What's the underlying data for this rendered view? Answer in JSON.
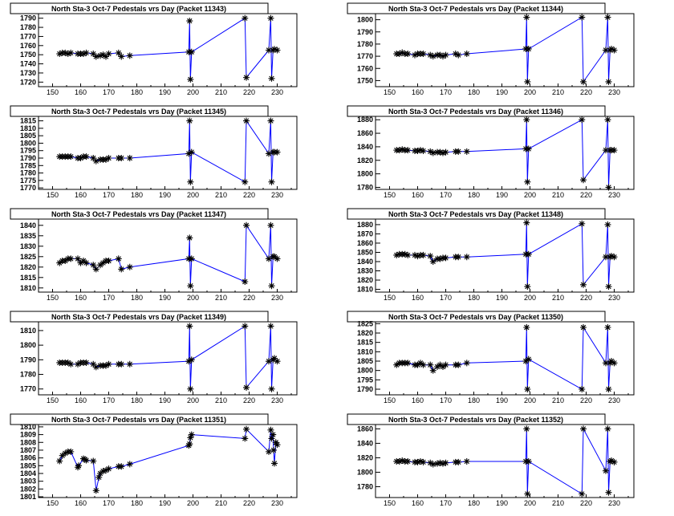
{
  "chart_data": [
    {
      "type": "line",
      "title": "North Sta-3 Oct-7 Pedestals vrs Day (Packet 11343)",
      "xlim": [
        145,
        237
      ],
      "xticks": [
        150,
        160,
        170,
        180,
        190,
        200,
        210,
        220,
        230
      ],
      "ylim": [
        1715,
        1795
      ],
      "yticks": [
        1720,
        1730,
        1740,
        1750,
        1760,
        1770,
        1780,
        1790
      ],
      "x": [
        152.5,
        153.5,
        154.5,
        155.5,
        156.5,
        159,
        160,
        161,
        162,
        164.5,
        165.5,
        167,
        168,
        169,
        170,
        173.5,
        174.5,
        177.5,
        198.5,
        198.8,
        199.1,
        199.5,
        218.5,
        219,
        227,
        227.7,
        228,
        228.5,
        229,
        230
      ],
      "y": [
        1751,
        1752,
        1752,
        1751,
        1752,
        1751,
        1751,
        1751,
        1752,
        1751,
        1748,
        1749,
        1750,
        1748,
        1751,
        1752,
        1748,
        1749,
        1753,
        1787,
        1723,
        1753,
        1790,
        1725,
        1755,
        1790,
        1724,
        1755,
        1756,
        1755
      ]
    },
    {
      "type": "line",
      "title": "North Sta-3 Oct-7 Pedestals vrs Day (Packet 11344)",
      "xlim": [
        145,
        237
      ],
      "xticks": [
        150,
        160,
        170,
        180,
        190,
        200,
        210,
        220,
        230
      ],
      "ylim": [
        1745,
        1805
      ],
      "yticks": [
        1750,
        1760,
        1770,
        1780,
        1790,
        1800
      ],
      "x": [
        152.5,
        153.5,
        154.5,
        155.5,
        156.5,
        159,
        160,
        161,
        162,
        164.5,
        165.5,
        167,
        168,
        169,
        170,
        173.5,
        174.5,
        177.5,
        198.5,
        198.8,
        199.1,
        199.5,
        218.5,
        219,
        227,
        227.7,
        228,
        228.5,
        229,
        230
      ],
      "y": [
        1772,
        1772,
        1773,
        1772,
        1772,
        1771,
        1772,
        1772,
        1772,
        1771,
        1770,
        1771,
        1771,
        1770,
        1771,
        1772,
        1771,
        1772,
        1776,
        1802,
        1749,
        1776,
        1802,
        1749,
        1775,
        1802,
        1749,
        1775,
        1776,
        1775
      ]
    },
    {
      "type": "line",
      "title": "North Sta-3 Oct-7 Pedestals vrs Day (Packet 11345)",
      "xlim": [
        145,
        237
      ],
      "xticks": [
        150,
        160,
        170,
        180,
        190,
        200,
        210,
        220,
        230
      ],
      "ylim": [
        1769,
        1818
      ],
      "yticks": [
        1770,
        1775,
        1780,
        1785,
        1790,
        1795,
        1800,
        1805,
        1810,
        1815
      ],
      "x": [
        152.5,
        153.5,
        154.5,
        155.5,
        156.5,
        159,
        160,
        161,
        162,
        164.5,
        165.5,
        167,
        168,
        169,
        170,
        173.5,
        174.5,
        177.5,
        198.5,
        198.8,
        199.1,
        199.5,
        218.5,
        219,
        227,
        227.7,
        228,
        228.5,
        229,
        230
      ],
      "y": [
        1791,
        1791,
        1791,
        1791,
        1791,
        1790,
        1790,
        1791,
        1791,
        1790,
        1788,
        1789,
        1789,
        1789,
        1790,
        1790,
        1790,
        1790,
        1793,
        1815,
        1774,
        1794,
        1774,
        1815,
        1793,
        1815,
        1774,
        1794,
        1794,
        1794
      ]
    },
    {
      "type": "line",
      "title": "North Sta-3 Oct-7 Pedestals vrs Day (Packet 11346)",
      "xlim": [
        145,
        237
      ],
      "xticks": [
        150,
        160,
        170,
        180,
        190,
        200,
        210,
        220,
        230
      ],
      "ylim": [
        1777,
        1885
      ],
      "yticks": [
        1780,
        1800,
        1820,
        1840,
        1860,
        1880
      ],
      "x": [
        152.5,
        153.5,
        154.5,
        155.5,
        156.5,
        159,
        160,
        161,
        162,
        164.5,
        165.5,
        167,
        168,
        169,
        170,
        173.5,
        174.5,
        177.5,
        198.5,
        198.8,
        199.1,
        199.5,
        218.5,
        219,
        227,
        227.7,
        228,
        228.5,
        229,
        230
      ],
      "y": [
        1835,
        1835,
        1836,
        1835,
        1835,
        1834,
        1834,
        1835,
        1834,
        1833,
        1831,
        1832,
        1832,
        1831,
        1832,
        1833,
        1833,
        1833,
        1837,
        1880,
        1788,
        1837,
        1880,
        1791,
        1835,
        1880,
        1780,
        1835,
        1835,
        1835
      ]
    },
    {
      "type": "line",
      "title": "North Sta-3 Oct-7 Pedestals vrs Day (Packet 11347)",
      "xlim": [
        145,
        237
      ],
      "xticks": [
        150,
        160,
        170,
        180,
        190,
        200,
        210,
        220,
        230
      ],
      "ylim": [
        1808,
        1843
      ],
      "yticks": [
        1810,
        1815,
        1820,
        1825,
        1830,
        1835,
        1840
      ],
      "x": [
        152.5,
        153.5,
        154.5,
        155.5,
        156.5,
        159,
        160,
        161,
        162,
        164.5,
        165.5,
        167,
        168,
        169,
        170,
        173.5,
        174.5,
        177.5,
        198.5,
        198.8,
        199.1,
        199.5,
        218.5,
        219,
        227,
        227.7,
        228,
        228.5,
        229,
        230
      ],
      "y": [
        1822,
        1823,
        1823,
        1824,
        1824,
        1824,
        1822,
        1823,
        1822,
        1821,
        1819,
        1821,
        1822,
        1823,
        1823,
        1824,
        1819,
        1820,
        1824,
        1834,
        1811,
        1824,
        1813,
        1840,
        1824,
        1840,
        1811,
        1825,
        1825,
        1824
      ]
    },
    {
      "type": "line",
      "title": "North Sta-3 Oct-7 Pedestals vrs Day (Packet 11348)",
      "xlim": [
        145,
        237
      ],
      "xticks": [
        150,
        160,
        170,
        180,
        190,
        200,
        210,
        220,
        230
      ],
      "ylim": [
        1807,
        1886
      ],
      "yticks": [
        1810,
        1820,
        1830,
        1840,
        1850,
        1860,
        1870,
        1880
      ],
      "x": [
        152.5,
        153.5,
        154.5,
        155.5,
        156.5,
        159,
        160,
        161,
        162,
        164.5,
        165.5,
        167,
        168,
        169,
        170,
        173.5,
        174.5,
        177.5,
        198.5,
        198.8,
        199.1,
        199.5,
        218.5,
        219,
        227,
        227.7,
        228,
        228.5,
        229,
        230
      ],
      "y": [
        1847,
        1848,
        1848,
        1848,
        1847,
        1847,
        1846,
        1847,
        1847,
        1846,
        1840,
        1843,
        1843,
        1844,
        1844,
        1845,
        1845,
        1845,
        1848,
        1882,
        1813,
        1848,
        1881,
        1815,
        1845,
        1880,
        1813,
        1845,
        1846,
        1845
      ]
    },
    {
      "type": "line",
      "title": "North Sta-3 Oct-7 Pedestals vrs Day (Packet 11349)",
      "xlim": [
        145,
        237
      ],
      "xticks": [
        150,
        160,
        170,
        180,
        190,
        200,
        210,
        220,
        230
      ],
      "ylim": [
        1766,
        1816
      ],
      "yticks": [
        1770,
        1780,
        1790,
        1800,
        1810
      ],
      "x": [
        152.5,
        153.5,
        154.5,
        155.5,
        156.5,
        159,
        160,
        161,
        162,
        164.5,
        165.5,
        167,
        168,
        169,
        170,
        173.5,
        174.5,
        177.5,
        198.5,
        198.8,
        199.1,
        199.5,
        218.5,
        219,
        227,
        227.7,
        228,
        228.5,
        229,
        230
      ],
      "y": [
        1788,
        1788,
        1788,
        1788,
        1787,
        1787,
        1788,
        1788,
        1788,
        1787,
        1785,
        1786,
        1786,
        1786,
        1787,
        1787,
        1787,
        1787,
        1789,
        1813,
        1770,
        1790,
        1813,
        1771,
        1789,
        1813,
        1770,
        1790,
        1791,
        1789
      ]
    },
    {
      "type": "line",
      "title": "North Sta-3 Oct-7 Pedestals vrs Day (Packet 11350)",
      "xlim": [
        145,
        237
      ],
      "xticks": [
        150,
        160,
        170,
        180,
        190,
        200,
        210,
        220,
        230
      ],
      "ylim": [
        1787,
        1826
      ],
      "yticks": [
        1790,
        1795,
        1800,
        1805,
        1810,
        1815,
        1820,
        1825
      ],
      "x": [
        152.5,
        153.5,
        154.5,
        155.5,
        156.5,
        159,
        160,
        161,
        162,
        164.5,
        165.5,
        167,
        168,
        169,
        170,
        173.5,
        174.5,
        177.5,
        198.5,
        198.8,
        199.1,
        199.5,
        218.5,
        219,
        227,
        227.7,
        228,
        228.5,
        229,
        230
      ],
      "y": [
        1803,
        1804,
        1804,
        1804,
        1804,
        1803,
        1803,
        1804,
        1803,
        1803,
        1800,
        1802,
        1803,
        1802,
        1803,
        1803,
        1803,
        1804,
        1805,
        1823,
        1790,
        1806,
        1790,
        1823,
        1804,
        1823,
        1790,
        1804,
        1805,
        1804
      ]
    },
    {
      "type": "line",
      "title": "North Sta-3 Oct-7 Pedestals vrs Day (Packet 11351)",
      "xlim": [
        145,
        237
      ],
      "xticks": [
        150,
        160,
        170,
        180,
        190,
        200,
        210,
        220,
        230
      ],
      "ylim": [
        1800.9,
        1810.3
      ],
      "yticks": [
        1801,
        1802,
        1803,
        1804,
        1805,
        1806,
        1807,
        1808,
        1809,
        1810
      ],
      "x": [
        152.5,
        153.5,
        154.5,
        155.5,
        156.5,
        159,
        159.3,
        161,
        161.5,
        162,
        164.5,
        165.5,
        166.5,
        167,
        168,
        169,
        170,
        173.5,
        174.5,
        177.5,
        198.5,
        198.8,
        199.1,
        199.5,
        218.5,
        219,
        227,
        227.7,
        228,
        228.5,
        228.7,
        229,
        229.5,
        230
      ],
      "y": [
        1805.6,
        1806.3,
        1806.6,
        1806.8,
        1806.8,
        1804.8,
        1805,
        1805.9,
        1805.8,
        1805.7,
        1805.6,
        1801.8,
        1803.5,
        1804,
        1804.3,
        1804.4,
        1804.6,
        1804.9,
        1804.9,
        1805.2,
        1807.6,
        1807.8,
        1808.6,
        1809,
        1808.5,
        1809.7,
        1806.8,
        1809.6,
        1808.5,
        1809,
        1807,
        1805.3,
        1808,
        1807.7
      ]
    },
    {
      "type": "line",
      "title": "North Sta-3 Oct-7 Pedestals vrs Day (Packet 11352)",
      "xlim": [
        145,
        237
      ],
      "xticks": [
        150,
        160,
        170,
        180,
        190,
        200,
        210,
        220,
        230
      ],
      "ylim": [
        1765,
        1866
      ],
      "yticks": [
        1780,
        1800,
        1820,
        1840,
        1860
      ],
      "x": [
        152.5,
        153.5,
        154.5,
        155.5,
        156.5,
        159,
        160,
        161,
        162,
        164.5,
        165.5,
        167,
        168,
        169,
        170,
        173.5,
        174.5,
        177.5,
        198.5,
        198.8,
        199.1,
        199.5,
        218.5,
        219,
        227,
        227.7,
        228,
        228.5,
        229,
        230
      ],
      "y": [
        1815,
        1815,
        1816,
        1815,
        1815,
        1814,
        1814,
        1815,
        1814,
        1813,
        1811,
        1812,
        1813,
        1812,
        1813,
        1814,
        1814,
        1815,
        1815,
        1860,
        1770,
        1815,
        1770,
        1860,
        1802,
        1860,
        1772,
        1815,
        1816,
        1814
      ]
    }
  ],
  "colors": {
    "line": "#0000ff",
    "marker": "#000000",
    "frame": "#000000",
    "background": "#ffffff"
  }
}
